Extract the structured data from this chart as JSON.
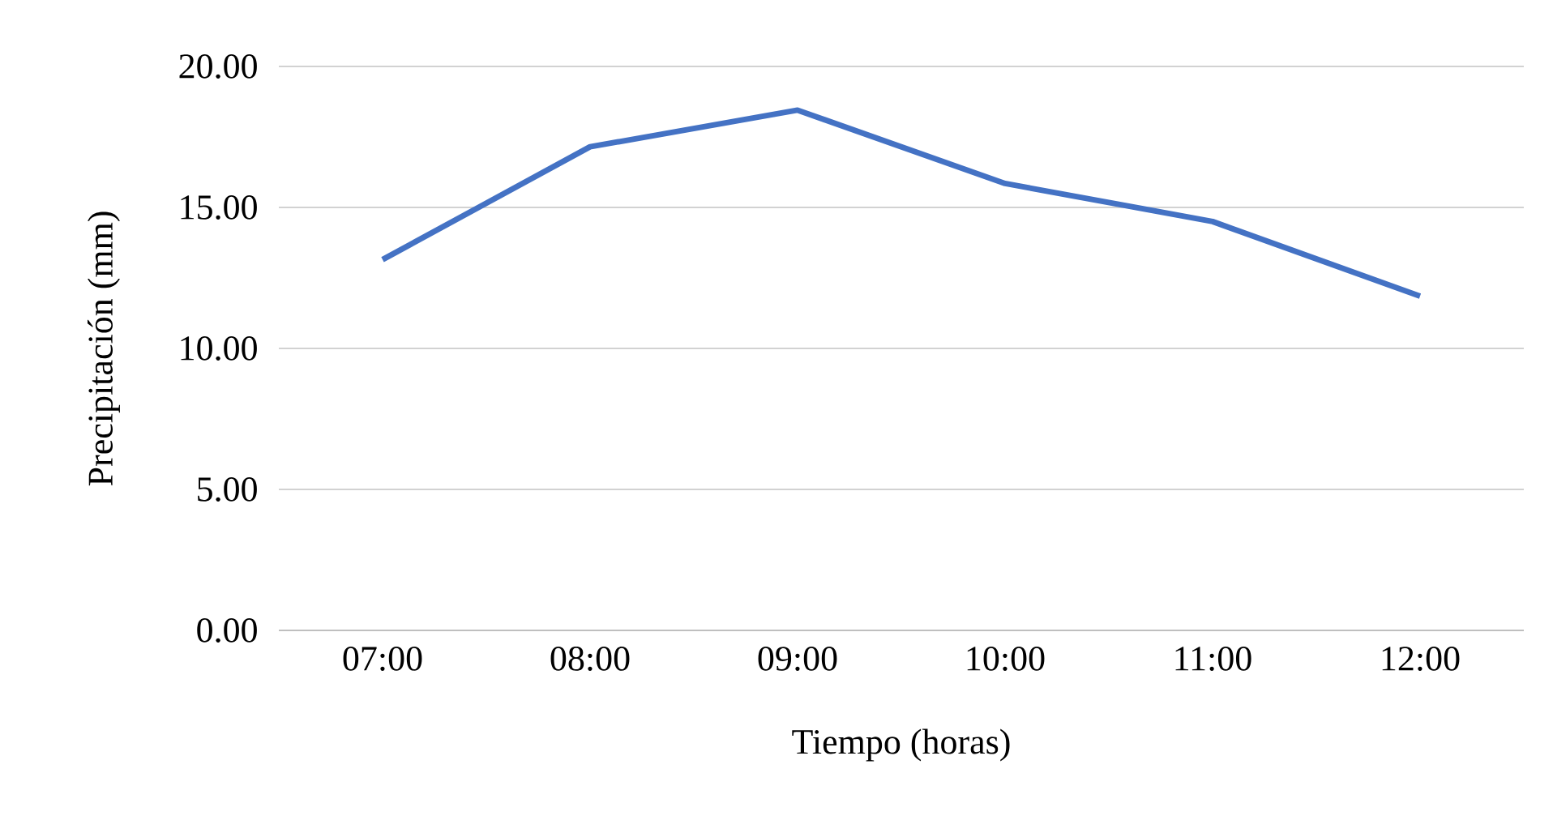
{
  "chart_data": {
    "type": "line",
    "xlabel": "Tiempo (horas)",
    "ylabel": "Precipitación (mm)",
    "categories": [
      "07:00",
      "08:00",
      "09:00",
      "10:00",
      "11:00",
      "12:00"
    ],
    "values": [
      13.15,
      17.15,
      18.45,
      15.85,
      14.5,
      11.85
    ],
    "color": "#4472c4",
    "line_style": "solid",
    "ylim": [
      0,
      20
    ],
    "yticks": [
      {
        "value": 0,
        "label": "0.00"
      },
      {
        "value": 5,
        "label": "5.00"
      },
      {
        "value": 10,
        "label": "10.00"
      },
      {
        "value": 15,
        "label": "15.00"
      },
      {
        "value": 20,
        "label": "20.00"
      }
    ],
    "grid": "y"
  }
}
